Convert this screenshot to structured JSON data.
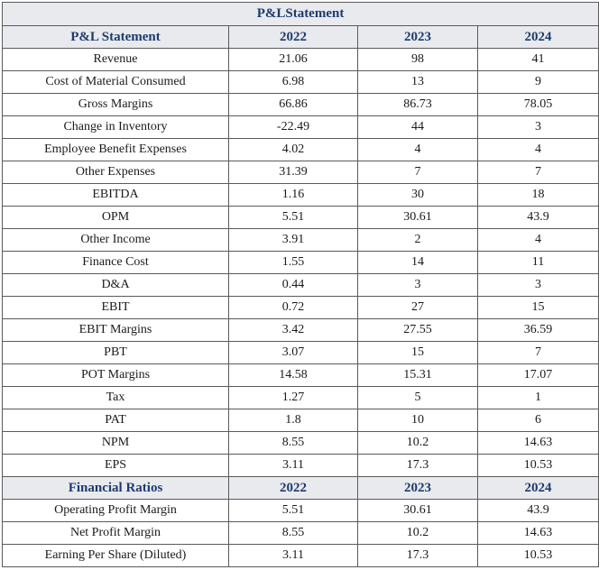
{
  "title": "P&LStatement",
  "pl_header": [
    "P&L Statement",
    "2022",
    "2023",
    "2024"
  ],
  "pl_rows": [
    [
      "Revenue",
      "21.06",
      "98",
      "41"
    ],
    [
      "Cost of Material Consumed",
      "6.98",
      "13",
      "9"
    ],
    [
      "Gross Margins",
      "66.86",
      "86.73",
      "78.05"
    ],
    [
      "Change in Inventory",
      "-22.49",
      "44",
      "3"
    ],
    [
      "Employee Benefit Expenses",
      "4.02",
      "4",
      "4"
    ],
    [
      "Other Expenses",
      "31.39",
      "7",
      "7"
    ],
    [
      "EBITDA",
      "1.16",
      "30",
      "18"
    ],
    [
      "OPM",
      "5.51",
      "30.61",
      "43.9"
    ],
    [
      "Other Income",
      "3.91",
      "2",
      "4"
    ],
    [
      "Finance Cost",
      "1.55",
      "14",
      "11"
    ],
    [
      "D&A",
      "0.44",
      "3",
      "3"
    ],
    [
      "EBIT",
      "0.72",
      "27",
      "15"
    ],
    [
      "EBIT Margins",
      "3.42",
      "27.55",
      "36.59"
    ],
    [
      "PBT",
      "3.07",
      "15",
      "7"
    ],
    [
      "POT Margins",
      "14.58",
      "15.31",
      "17.07"
    ],
    [
      "Tax",
      "1.27",
      "5",
      "1"
    ],
    [
      "PAT",
      "1.8",
      "10",
      "6"
    ],
    [
      "NPM",
      "8.55",
      "10.2",
      "14.63"
    ],
    [
      "EPS",
      "3.11",
      "17.3",
      "10.53"
    ]
  ],
  "ratio_header": [
    "Financial Ratios",
    "2022",
    "2023",
    "2024"
  ],
  "ratio_rows": [
    [
      "Operating Profit Margin",
      "5.51",
      "30.61",
      "43.9"
    ],
    [
      "Net Profit Margin",
      "8.55",
      "10.2",
      "14.63"
    ],
    [
      "Earning Per Share (Diluted)",
      "3.11",
      "17.3",
      "10.53"
    ]
  ]
}
